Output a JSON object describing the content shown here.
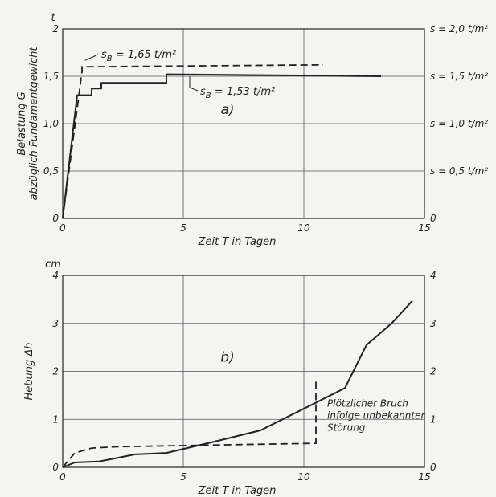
{
  "chart_data": [
    {
      "type": "line",
      "panel_label": "a)",
      "top_unit": "t",
      "ylabel": "Belastung G",
      "ylabel2": "abzüglich Fundamentgewicht",
      "xlabel": "Zeit T in Tagen",
      "xlim": [
        0,
        15
      ],
      "ylim": [
        0,
        2
      ],
      "xticks": [
        "0",
        "5",
        "10",
        "15"
      ],
      "yticks": [
        "0",
        "0,5",
        "1,0",
        "1,5",
        "2"
      ],
      "right_ticks": [
        "0",
        "s = 0,5 t/m²",
        "s = 1,0 t/m²",
        "s = 1,5 t/m²",
        "s = 2,0 t/m²"
      ],
      "grid": true,
      "annotations": [
        {
          "text": "s",
          "sub": "B",
          "rest": " = 1,65  t/m²",
          "x": 0.85,
          "y": 1.65
        },
        {
          "text": "s",
          "sub": "B",
          "rest": " = 1,53  t/m²",
          "x": 5.4,
          "y": 1.5
        }
      ],
      "series": [
        {
          "style": "solid",
          "x": [
            0,
            0.6,
            0.6,
            1.2,
            1.2,
            1.6,
            1.6,
            1.9,
            1.9,
            4.3,
            4.3,
            13.2
          ],
          "y": [
            0,
            1.3,
            1.3,
            1.3,
            1.37,
            1.37,
            1.43,
            1.43,
            1.43,
            1.43,
            1.52,
            1.5
          ]
        },
        {
          "style": "dashed",
          "x": [
            0,
            0.8,
            0.8,
            1.2,
            10.8
          ],
          "y": [
            0,
            1.55,
            1.6,
            1.6,
            1.62
          ]
        }
      ]
    },
    {
      "type": "line",
      "panel_label": "b)",
      "top_unit": "cm",
      "ylabel": "Hebung Δh",
      "xlabel": "Zeit T in Tagen",
      "xlim": [
        0,
        15
      ],
      "ylim": [
        0,
        4
      ],
      "xticks": [
        "0",
        "5",
        "10",
        "15"
      ],
      "yticks": [
        "0",
        "1",
        "2",
        "3",
        "4"
      ],
      "right_ticks": [
        "0",
        "1",
        "2",
        "3",
        "4"
      ],
      "grid": true,
      "annotations": [
        {
          "lines": [
            "Plötzlicher Bruch",
            "infolge unbekannter",
            "Störung"
          ],
          "x": 10.9,
          "y": 1.3
        }
      ],
      "series": [
        {
          "style": "solid",
          "x": [
            0,
            0.5,
            1.5,
            3,
            4.3,
            6,
            8.2,
            11.7,
            12.6,
            13.6,
            14.5
          ],
          "y": [
            0,
            0.1,
            0.12,
            0.27,
            0.3,
            0.5,
            0.77,
            1.65,
            2.55,
            2.98,
            3.47
          ]
        },
        {
          "style": "dashed",
          "x": [
            0,
            0.5,
            1.2,
            2.3,
            10.5,
            10.5
          ],
          "y": [
            0,
            0.3,
            0.4,
            0.43,
            0.5,
            1.8
          ]
        }
      ]
    }
  ]
}
